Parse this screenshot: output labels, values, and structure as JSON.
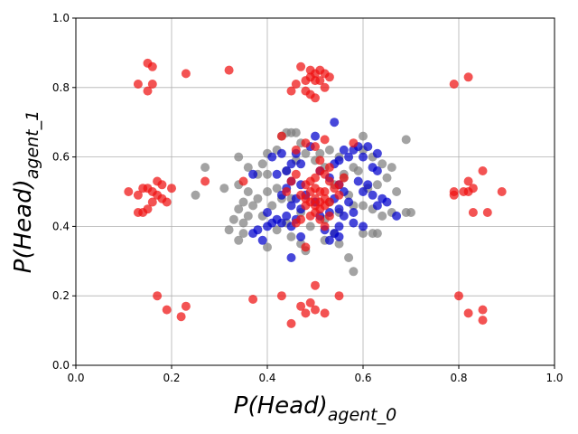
{
  "chart_data": {
    "type": "scatter",
    "title": "",
    "xlabel": "P(Head)",
    "xlabel_sub": "agent_0",
    "ylabel": "P(Head)",
    "ylabel_sub": "agent_1",
    "xlim": [
      0,
      1
    ],
    "ylim": [
      0,
      1
    ],
    "x_ticks": [
      0.0,
      0.2,
      0.4,
      0.6,
      0.8,
      1.0
    ],
    "y_ticks": [
      0.0,
      0.2,
      0.4,
      0.6,
      0.8,
      1.0
    ],
    "x_tick_labels": [
      "0.0",
      "0.2",
      "0.4",
      "0.6",
      "0.8",
      "1.0"
    ],
    "y_tick_labels": [
      "0.0",
      "0.2",
      "0.4",
      "0.6",
      "0.8",
      "1.0"
    ],
    "grid": true,
    "series": [
      {
        "color": "#808080",
        "points": [
          [
            0.44,
            0.67
          ],
          [
            0.45,
            0.67
          ],
          [
            0.46,
            0.67
          ],
          [
            0.43,
            0.66
          ],
          [
            0.47,
            0.64
          ],
          [
            0.42,
            0.62
          ],
          [
            0.4,
            0.61
          ],
          [
            0.39,
            0.58
          ],
          [
            0.34,
            0.6
          ],
          [
            0.36,
            0.57
          ],
          [
            0.27,
            0.57
          ],
          [
            0.38,
            0.55
          ],
          [
            0.4,
            0.55
          ],
          [
            0.31,
            0.51
          ],
          [
            0.25,
            0.49
          ],
          [
            0.34,
            0.52
          ],
          [
            0.36,
            0.5
          ],
          [
            0.38,
            0.48
          ],
          [
            0.37,
            0.46
          ],
          [
            0.35,
            0.47
          ],
          [
            0.34,
            0.45
          ],
          [
            0.36,
            0.43
          ],
          [
            0.33,
            0.42
          ],
          [
            0.35,
            0.41
          ],
          [
            0.32,
            0.39
          ],
          [
            0.35,
            0.38
          ],
          [
            0.34,
            0.36
          ],
          [
            0.4,
            0.34
          ],
          [
            0.42,
            0.39
          ],
          [
            0.44,
            0.41
          ],
          [
            0.45,
            0.37
          ],
          [
            0.47,
            0.35
          ],
          [
            0.48,
            0.33
          ],
          [
            0.52,
            0.36
          ],
          [
            0.54,
            0.38
          ],
          [
            0.55,
            0.35
          ],
          [
            0.57,
            0.31
          ],
          [
            0.58,
            0.27
          ],
          [
            0.6,
            0.38
          ],
          [
            0.62,
            0.38
          ],
          [
            0.63,
            0.38
          ],
          [
            0.6,
            0.46
          ],
          [
            0.62,
            0.45
          ],
          [
            0.64,
            0.43
          ],
          [
            0.66,
            0.44
          ],
          [
            0.69,
            0.44
          ],
          [
            0.7,
            0.44
          ],
          [
            0.67,
            0.5
          ],
          [
            0.65,
            0.54
          ],
          [
            0.66,
            0.57
          ],
          [
            0.64,
            0.58
          ],
          [
            0.62,
            0.6
          ],
          [
            0.6,
            0.62
          ],
          [
            0.58,
            0.57
          ],
          [
            0.56,
            0.54
          ],
          [
            0.57,
            0.49
          ],
          [
            0.58,
            0.46
          ],
          [
            0.55,
            0.44
          ],
          [
            0.53,
            0.47
          ],
          [
            0.52,
            0.57
          ],
          [
            0.51,
            0.61
          ],
          [
            0.5,
            0.59
          ],
          [
            0.53,
            0.62
          ],
          [
            0.55,
            0.6
          ],
          [
            0.56,
            0.55
          ],
          [
            0.69,
            0.65
          ],
          [
            0.6,
            0.66
          ],
          [
            0.48,
            0.61
          ],
          [
            0.46,
            0.59
          ],
          [
            0.44,
            0.56
          ],
          [
            0.42,
            0.51
          ],
          [
            0.43,
            0.48
          ],
          [
            0.41,
            0.46
          ],
          [
            0.4,
            0.5
          ],
          [
            0.39,
            0.43
          ],
          [
            0.52,
            0.42
          ],
          [
            0.49,
            0.4
          ],
          [
            0.47,
            0.44
          ],
          [
            0.45,
            0.48
          ],
          [
            0.63,
            0.52
          ],
          [
            0.61,
            0.51
          ],
          [
            0.59,
            0.56
          ],
          [
            0.54,
            0.52
          ]
        ]
      },
      {
        "color": "#0000cc",
        "points": [
          [
            0.54,
            0.7
          ],
          [
            0.5,
            0.66
          ],
          [
            0.49,
            0.63
          ],
          [
            0.46,
            0.61
          ],
          [
            0.43,
            0.61
          ],
          [
            0.45,
            0.58
          ],
          [
            0.44,
            0.56
          ],
          [
            0.42,
            0.55
          ],
          [
            0.45,
            0.53
          ],
          [
            0.47,
            0.52
          ],
          [
            0.44,
            0.51
          ],
          [
            0.43,
            0.49
          ],
          [
            0.46,
            0.48
          ],
          [
            0.45,
            0.46
          ],
          [
            0.47,
            0.45
          ],
          [
            0.44,
            0.43
          ],
          [
            0.42,
            0.42
          ],
          [
            0.41,
            0.41
          ],
          [
            0.43,
            0.41
          ],
          [
            0.45,
            0.4
          ],
          [
            0.4,
            0.4
          ],
          [
            0.38,
            0.39
          ],
          [
            0.37,
            0.38
          ],
          [
            0.39,
            0.36
          ],
          [
            0.47,
            0.37
          ],
          [
            0.45,
            0.31
          ],
          [
            0.51,
            0.43
          ],
          [
            0.53,
            0.44
          ],
          [
            0.55,
            0.45
          ],
          [
            0.54,
            0.48
          ],
          [
            0.56,
            0.5
          ],
          [
            0.55,
            0.52
          ],
          [
            0.53,
            0.54
          ],
          [
            0.51,
            0.56
          ],
          [
            0.54,
            0.58
          ],
          [
            0.55,
            0.59
          ],
          [
            0.57,
            0.6
          ],
          [
            0.58,
            0.62
          ],
          [
            0.56,
            0.62
          ],
          [
            0.59,
            0.63
          ],
          [
            0.61,
            0.63
          ],
          [
            0.6,
            0.6
          ],
          [
            0.62,
            0.57
          ],
          [
            0.63,
            0.56
          ],
          [
            0.61,
            0.52
          ],
          [
            0.6,
            0.5
          ],
          [
            0.62,
            0.49
          ],
          [
            0.64,
            0.48
          ],
          [
            0.63,
            0.46
          ],
          [
            0.65,
            0.47
          ],
          [
            0.67,
            0.43
          ],
          [
            0.58,
            0.44
          ],
          [
            0.56,
            0.43
          ],
          [
            0.58,
            0.41
          ],
          [
            0.6,
            0.4
          ],
          [
            0.55,
            0.4
          ],
          [
            0.54,
            0.38
          ],
          [
            0.53,
            0.36
          ],
          [
            0.52,
            0.39
          ],
          [
            0.5,
            0.47
          ],
          [
            0.48,
            0.49
          ],
          [
            0.47,
            0.58
          ],
          [
            0.41,
            0.6
          ],
          [
            0.37,
            0.55
          ],
          [
            0.57,
            0.47
          ],
          [
            0.59,
            0.53
          ],
          [
            0.63,
            0.61
          ],
          [
            0.55,
            0.37
          ],
          [
            0.46,
            0.42
          ],
          [
            0.4,
            0.44
          ]
        ]
      },
      {
        "color": "#ee1111",
        "points": [
          [
            0.15,
            0.87
          ],
          [
            0.16,
            0.86
          ],
          [
            0.13,
            0.81
          ],
          [
            0.16,
            0.81
          ],
          [
            0.15,
            0.79
          ],
          [
            0.23,
            0.84
          ],
          [
            0.32,
            0.85
          ],
          [
            0.47,
            0.86
          ],
          [
            0.49,
            0.85
          ],
          [
            0.5,
            0.84
          ],
          [
            0.51,
            0.85
          ],
          [
            0.52,
            0.84
          ],
          [
            0.49,
            0.83
          ],
          [
            0.5,
            0.82
          ],
          [
            0.51,
            0.82
          ],
          [
            0.53,
            0.83
          ],
          [
            0.48,
            0.82
          ],
          [
            0.46,
            0.81
          ],
          [
            0.45,
            0.79
          ],
          [
            0.48,
            0.79
          ],
          [
            0.49,
            0.78
          ],
          [
            0.5,
            0.77
          ],
          [
            0.52,
            0.8
          ],
          [
            0.82,
            0.83
          ],
          [
            0.79,
            0.81
          ],
          [
            0.11,
            0.5
          ],
          [
            0.14,
            0.51
          ],
          [
            0.15,
            0.51
          ],
          [
            0.13,
            0.49
          ],
          [
            0.16,
            0.5
          ],
          [
            0.17,
            0.53
          ],
          [
            0.18,
            0.52
          ],
          [
            0.17,
            0.49
          ],
          [
            0.16,
            0.47
          ],
          [
            0.15,
            0.45
          ],
          [
            0.13,
            0.44
          ],
          [
            0.14,
            0.44
          ],
          [
            0.2,
            0.51
          ],
          [
            0.19,
            0.47
          ],
          [
            0.18,
            0.48
          ],
          [
            0.79,
            0.5
          ],
          [
            0.81,
            0.5
          ],
          [
            0.82,
            0.5
          ],
          [
            0.79,
            0.49
          ],
          [
            0.83,
            0.51
          ],
          [
            0.82,
            0.53
          ],
          [
            0.85,
            0.56
          ],
          [
            0.89,
            0.5
          ],
          [
            0.86,
            0.44
          ],
          [
            0.83,
            0.44
          ],
          [
            0.17,
            0.2
          ],
          [
            0.19,
            0.16
          ],
          [
            0.23,
            0.17
          ],
          [
            0.22,
            0.14
          ],
          [
            0.37,
            0.19
          ],
          [
            0.43,
            0.2
          ],
          [
            0.47,
            0.17
          ],
          [
            0.49,
            0.18
          ],
          [
            0.5,
            0.23
          ],
          [
            0.5,
            0.16
          ],
          [
            0.48,
            0.15
          ],
          [
            0.52,
            0.15
          ],
          [
            0.45,
            0.12
          ],
          [
            0.55,
            0.2
          ],
          [
            0.8,
            0.2
          ],
          [
            0.82,
            0.15
          ],
          [
            0.85,
            0.16
          ],
          [
            0.85,
            0.13
          ],
          [
            0.43,
            0.66
          ],
          [
            0.46,
            0.62
          ],
          [
            0.48,
            0.64
          ],
          [
            0.5,
            0.63
          ],
          [
            0.52,
            0.65
          ],
          [
            0.58,
            0.64
          ],
          [
            0.51,
            0.59
          ],
          [
            0.53,
            0.57
          ],
          [
            0.51,
            0.56
          ],
          [
            0.52,
            0.55
          ],
          [
            0.5,
            0.54
          ],
          [
            0.53,
            0.53
          ],
          [
            0.49,
            0.53
          ],
          [
            0.48,
            0.52
          ],
          [
            0.5,
            0.51
          ],
          [
            0.51,
            0.5
          ],
          [
            0.52,
            0.5
          ],
          [
            0.49,
            0.5
          ],
          [
            0.47,
            0.49
          ],
          [
            0.48,
            0.48
          ],
          [
            0.5,
            0.48
          ],
          [
            0.52,
            0.48
          ],
          [
            0.51,
            0.47
          ],
          [
            0.49,
            0.47
          ],
          [
            0.53,
            0.47
          ],
          [
            0.5,
            0.46
          ],
          [
            0.51,
            0.45
          ],
          [
            0.48,
            0.46
          ],
          [
            0.52,
            0.46
          ],
          [
            0.5,
            0.44
          ],
          [
            0.49,
            0.43
          ],
          [
            0.47,
            0.42
          ],
          [
            0.46,
            0.41
          ],
          [
            0.54,
            0.51
          ],
          [
            0.55,
            0.49
          ],
          [
            0.55,
            0.52
          ],
          [
            0.56,
            0.54
          ],
          [
            0.46,
            0.55
          ],
          [
            0.45,
            0.53
          ],
          [
            0.44,
            0.5
          ],
          [
            0.53,
            0.43
          ],
          [
            0.48,
            0.34
          ],
          [
            0.27,
            0.53
          ],
          [
            0.35,
            0.53
          ],
          [
            0.51,
            0.42
          ],
          [
            0.52,
            0.4
          ]
        ]
      }
    ]
  }
}
